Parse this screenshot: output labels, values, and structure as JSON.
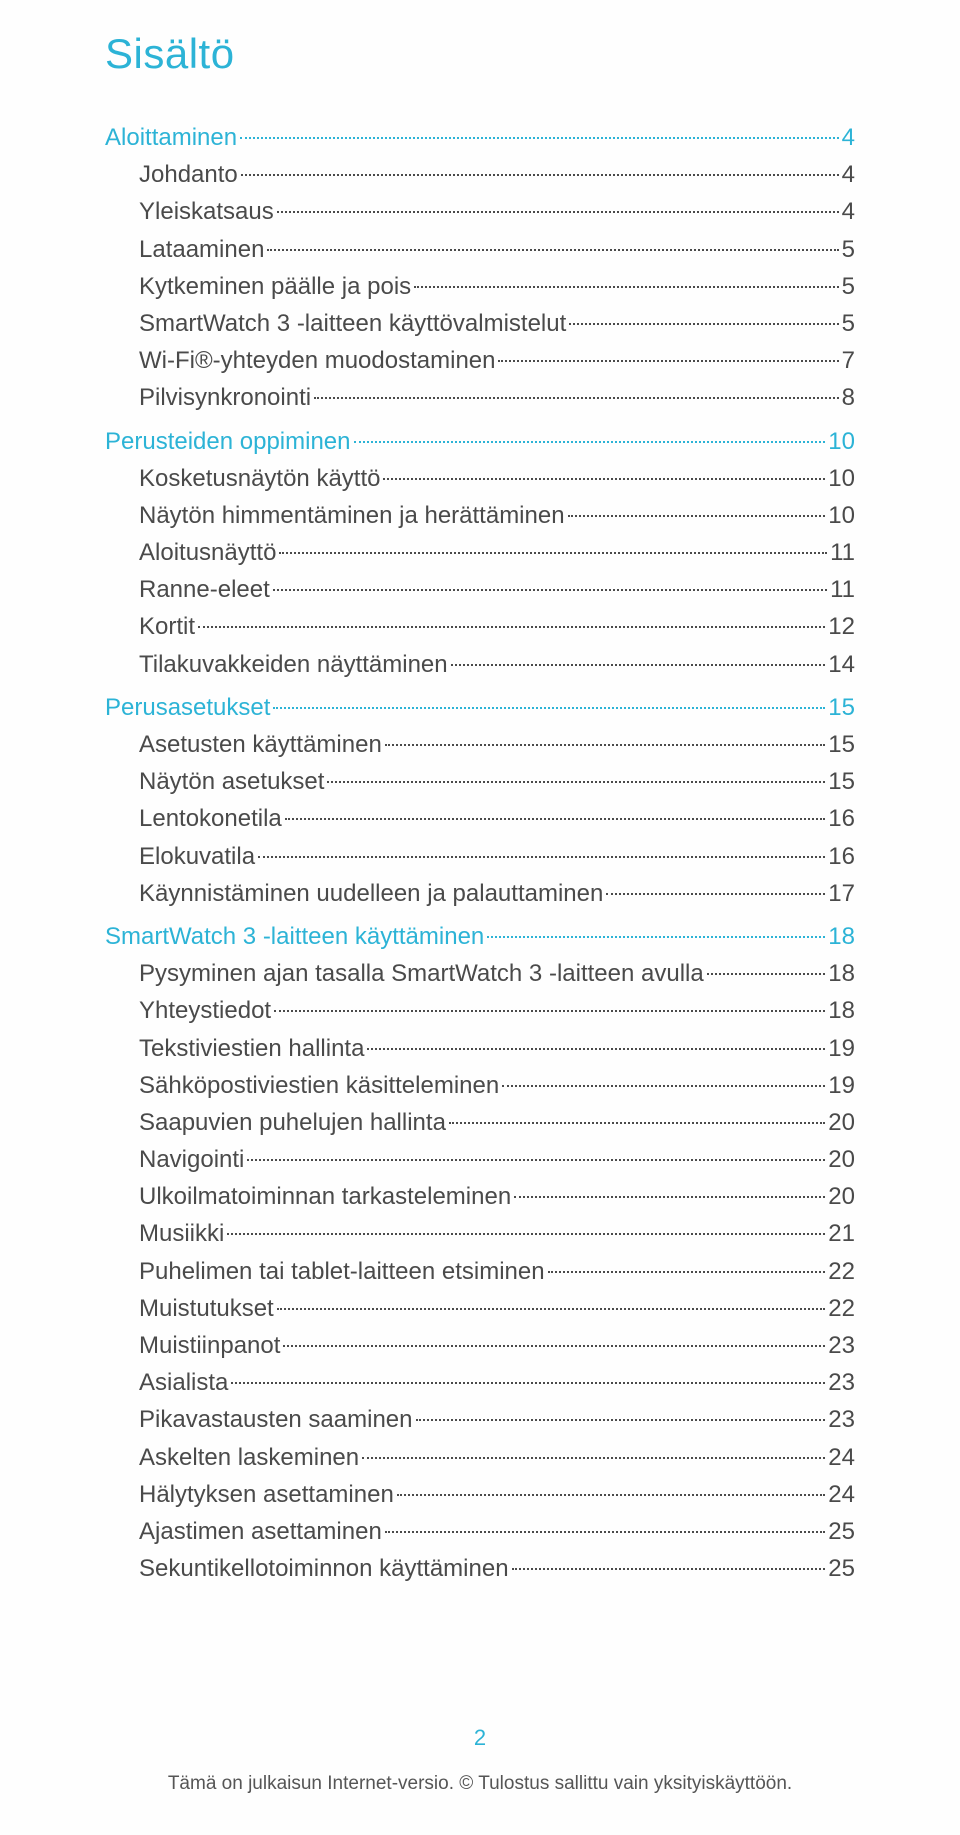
{
  "title": "Sisältö",
  "page_number": "2",
  "footer_text": "Tämä on julkaisun Internet-versio. © Tulostus sallittu vain yksityiskäyttöön.",
  "colors": {
    "accent": "#2cb3d6",
    "text": "#4a4a4a",
    "background": "#fefefe"
  },
  "toc": [
    {
      "type": "section",
      "label": "Aloittaminen",
      "page": "4"
    },
    {
      "type": "entry",
      "label": "Johdanto",
      "page": "4"
    },
    {
      "type": "entry",
      "label": "Yleiskatsaus",
      "page": "4"
    },
    {
      "type": "entry",
      "label": "Lataaminen",
      "page": "5"
    },
    {
      "type": "entry",
      "label": "Kytkeminen päälle ja pois",
      "page": "5"
    },
    {
      "type": "entry",
      "label": "SmartWatch 3 -laitteen käyttövalmistelut",
      "page": "5"
    },
    {
      "type": "entry",
      "label": "Wi-Fi®-yhteyden muodostaminen",
      "page": "7"
    },
    {
      "type": "entry",
      "label": "Pilvisynkronointi",
      "page": "8"
    },
    {
      "type": "section",
      "label": "Perusteiden oppiminen",
      "page": "10"
    },
    {
      "type": "entry",
      "label": "Kosketusnäytön käyttö",
      "page": "10"
    },
    {
      "type": "entry",
      "label": "Näytön himmentäminen ja herättäminen",
      "page": "10"
    },
    {
      "type": "entry",
      "label": "Aloitusnäyttö",
      "page": "11"
    },
    {
      "type": "entry",
      "label": "Ranne-eleet",
      "page": "11"
    },
    {
      "type": "entry",
      "label": "Kortit",
      "page": "12"
    },
    {
      "type": "entry",
      "label": "Tilakuvakkeiden näyttäminen",
      "page": "14"
    },
    {
      "type": "section",
      "label": "Perusasetukset",
      "page": "15"
    },
    {
      "type": "entry",
      "label": "Asetusten käyttäminen",
      "page": "15"
    },
    {
      "type": "entry",
      "label": "Näytön asetukset",
      "page": "15"
    },
    {
      "type": "entry",
      "label": "Lentokonetila",
      "page": "16"
    },
    {
      "type": "entry",
      "label": "Elokuvatila",
      "page": "16"
    },
    {
      "type": "entry",
      "label": "Käynnistäminen uudelleen ja palauttaminen",
      "page": "17"
    },
    {
      "type": "section",
      "label": "SmartWatch 3 -laitteen käyttäminen",
      "page": "18"
    },
    {
      "type": "entry",
      "label": "Pysyminen ajan tasalla SmartWatch 3 -laitteen avulla",
      "page": "18"
    },
    {
      "type": "entry",
      "label": "Yhteystiedot",
      "page": "18"
    },
    {
      "type": "entry",
      "label": "Tekstiviestien hallinta",
      "page": "19"
    },
    {
      "type": "entry",
      "label": "Sähköpostiviestien käsitteleminen",
      "page": "19"
    },
    {
      "type": "entry",
      "label": "Saapuvien puhelujen hallinta",
      "page": "20"
    },
    {
      "type": "entry",
      "label": "Navigointi",
      "page": "20"
    },
    {
      "type": "entry",
      "label": "Ulkoilmatoiminnan tarkasteleminen",
      "page": "20"
    },
    {
      "type": "entry",
      "label": "Musiikki",
      "page": "21"
    },
    {
      "type": "entry",
      "label": "Puhelimen tai tablet-laitteen etsiminen",
      "page": "22"
    },
    {
      "type": "entry",
      "label": "Muistutukset",
      "page": "22"
    },
    {
      "type": "entry",
      "label": "Muistiinpanot",
      "page": "23"
    },
    {
      "type": "entry",
      "label": "Asialista",
      "page": "23"
    },
    {
      "type": "entry",
      "label": "Pikavastausten saaminen",
      "page": "23"
    },
    {
      "type": "entry",
      "label": "Askelten laskeminen",
      "page": "24"
    },
    {
      "type": "entry",
      "label": "Hälytyksen asettaminen",
      "page": "24"
    },
    {
      "type": "entry",
      "label": "Ajastimen asettaminen",
      "page": "25"
    },
    {
      "type": "entry",
      "label": "Sekuntikellotoiminnon käyttäminen",
      "page": "25"
    }
  ]
}
